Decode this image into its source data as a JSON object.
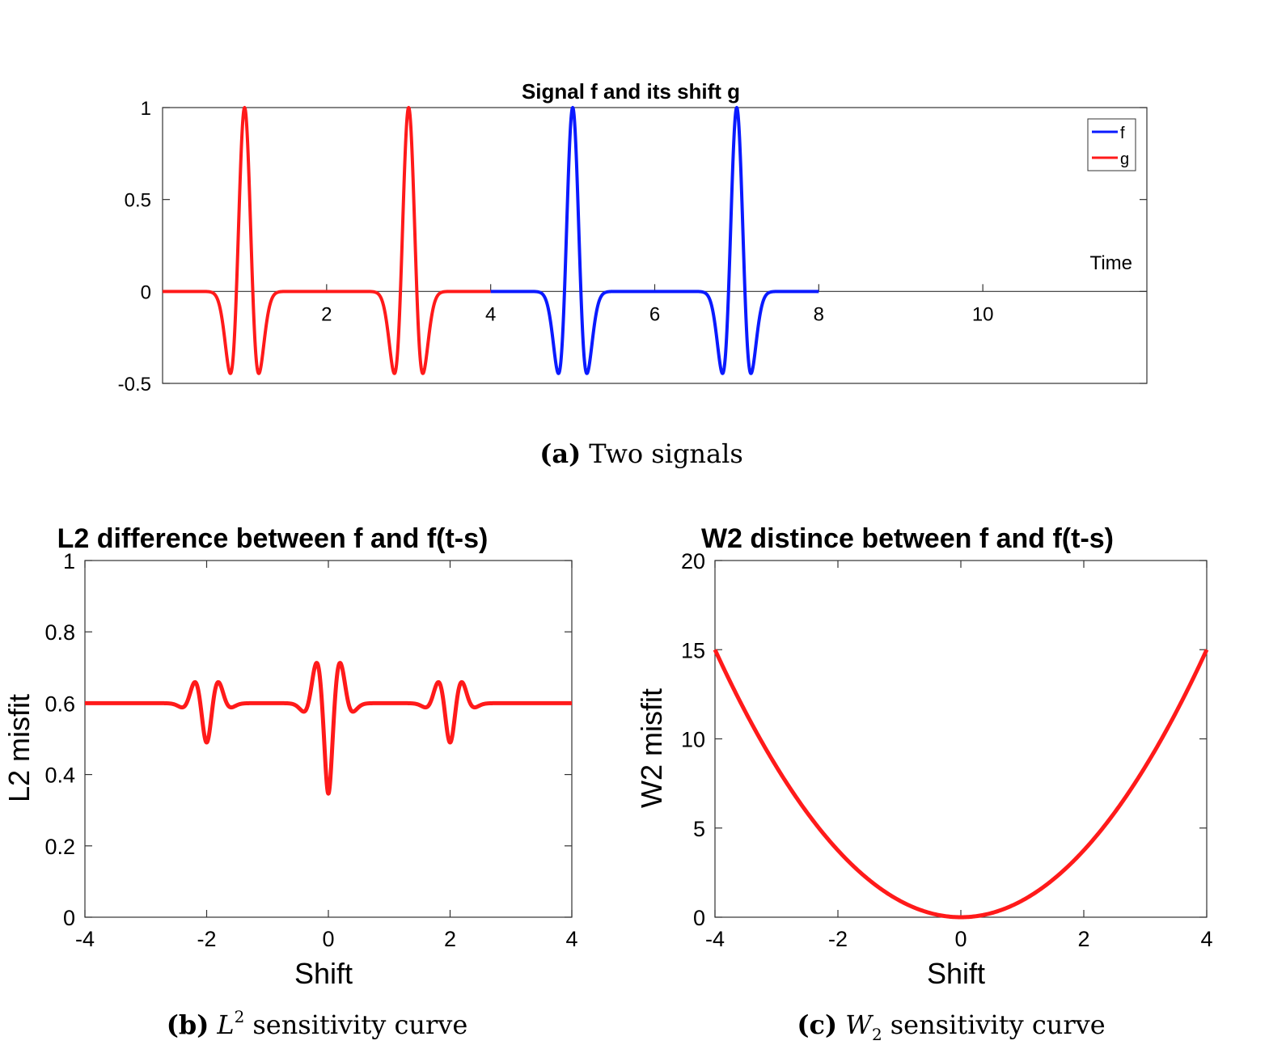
{
  "chart_data": [
    {
      "type": "line",
      "title": "Signal f and its shift g",
      "caption_tag": "(a)",
      "caption_text": "Two signals",
      "xlabel": "Time",
      "ylabel": "",
      "xlim": [
        0,
        12
      ],
      "ylim": [
        -0.5,
        1
      ],
      "xticks": [
        2,
        4,
        6,
        8,
        10
      ],
      "yticks": [
        -0.5,
        0,
        0.5,
        1
      ],
      "ytick_labels": [
        "-0.5",
        "0",
        "0.5",
        "1"
      ],
      "legend": "top-right",
      "series": [
        {
          "name": "f",
          "color": "#0a1aff",
          "domain": [
            4,
            8
          ],
          "peaks": [
            5,
            7
          ],
          "amplitude": 1,
          "sigma": 0.1
        },
        {
          "name": "g",
          "color": "#ff1a1a",
          "domain": [
            0,
            4
          ],
          "peaks": [
            1,
            3
          ],
          "amplitude": 1,
          "sigma": 0.1
        }
      ]
    },
    {
      "type": "line",
      "title": "L2 difference between f and f(t-s)",
      "caption_tag": "(b)",
      "caption_text": "sensitivity curve",
      "caption_math": "L",
      "caption_sup": "2",
      "xlabel": "Shift",
      "ylabel": "L2 misfit",
      "xlim": [
        -4,
        4
      ],
      "ylim": [
        0,
        1
      ],
      "xticks": [
        -4,
        -2,
        0,
        2,
        4
      ],
      "yticks": [
        0,
        0.2,
        0.4,
        0.6,
        0.8,
        1
      ],
      "ytick_labels": [
        "0",
        "0.2",
        "0.4",
        "0.6",
        "0.8",
        "1"
      ],
      "series": [
        {
          "name": "",
          "color": "#ff1a1a",
          "baseline": 0.6,
          "sigma": 0.1
        }
      ]
    },
    {
      "type": "line",
      "title": "W2 distince between f and f(t-s)",
      "caption_tag": "(c)",
      "caption_text": "sensitivity curve",
      "caption_math": "W",
      "caption_sub": "2",
      "xlabel": "Shift",
      "ylabel": "W2 misfit",
      "xlim": [
        -4,
        4
      ],
      "ylim": [
        0,
        20
      ],
      "xticks": [
        -4,
        -2,
        0,
        2,
        4
      ],
      "yticks": [
        0,
        5,
        10,
        15,
        20
      ],
      "ytick_labels": [
        "0",
        "5",
        "10",
        "15",
        "20"
      ],
      "series": [
        {
          "name": "",
          "color": "#ff1a1a",
          "formula": "0.94*s^2",
          "y_at_edges": 15
        }
      ]
    }
  ]
}
